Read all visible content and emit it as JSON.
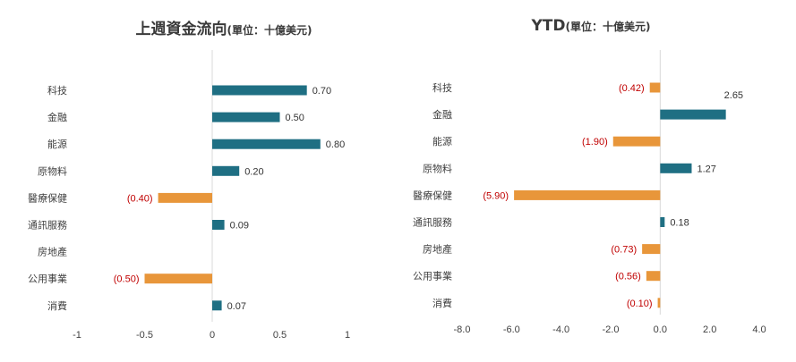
{
  "colors": {
    "positive": "#1f6f83",
    "negative": "#e8963a",
    "negative_label": "#c00000",
    "axis": "#d9d9d9"
  },
  "chart_data": [
    {
      "type": "bar",
      "orientation": "horizontal",
      "title_main": "上週資金流向",
      "title_unit": "(單位：十億美元)",
      "categories": [
        "科技",
        "金融",
        "能源",
        "原物料",
        "醫療保健",
        "通訊服務",
        "房地產",
        "公用事業",
        "消費"
      ],
      "values": [
        0.7,
        0.5,
        0.8,
        0.2,
        -0.4,
        0.09,
        null,
        -0.5,
        0.07
      ],
      "value_labels": [
        "0.70",
        "0.50",
        "0.80",
        "0.20",
        "(0.40)",
        "0.09",
        "",
        "(0.50)",
        "0.07"
      ],
      "xlim": [
        -1,
        1
      ],
      "xticks": [
        -1,
        -0.5,
        0,
        0.5,
        1
      ],
      "xtick_labels": [
        "-1",
        "-0.5",
        "0",
        "0.5",
        "1"
      ],
      "grid": false,
      "legend": "none"
    },
    {
      "type": "bar",
      "orientation": "horizontal",
      "title_main": "YTD",
      "title_unit": "(單位：十億美元)",
      "categories": [
        "科技",
        "金融",
        "能源",
        "原物料",
        "醫療保健",
        "通訊服務",
        "房地產",
        "公用事業",
        "消費"
      ],
      "values": [
        -0.42,
        2.65,
        -1.9,
        1.27,
        -5.9,
        0.18,
        -0.73,
        -0.56,
        -0.1
      ],
      "value_labels": [
        "(0.42)",
        "2.65",
        "(1.90)",
        "1.27",
        "(5.90)",
        "0.18",
        "(0.73)",
        "(0.56)",
        "(0.10)"
      ],
      "xlim": [
        -8,
        4
      ],
      "xticks": [
        -8,
        -6,
        -4,
        -2,
        0,
        2,
        4
      ],
      "xtick_labels": [
        "-8.0",
        "-6.0",
        "-4.0",
        "-2.0",
        "0.0",
        "2.0",
        "4.0"
      ],
      "grid": false,
      "legend": "none"
    }
  ]
}
